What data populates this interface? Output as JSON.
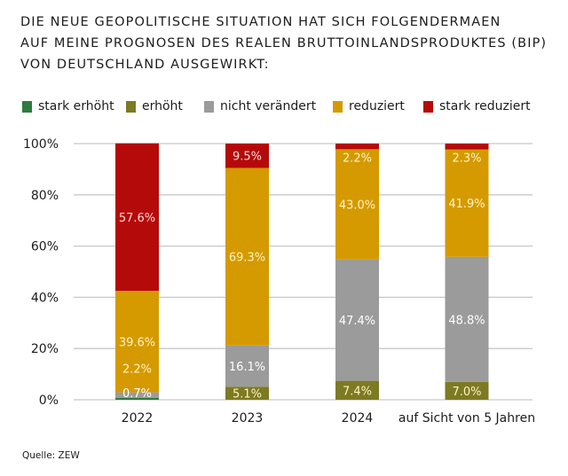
{
  "chart_data": {
    "type": "bar",
    "stacked": true,
    "title_lines": [
      "DIE NEUE GEOPOLITISCHE SITUATION HAT SICH FOLGENDERMAEN",
      "AUF MEINE PROGNOSEN DES REALEN BRUTTOINLANDSPRODUKTES (BIP)",
      "VON DEUTSCHLAND AUSGEWIRKT:"
    ],
    "xlabel": "",
    "ylabel": "",
    "ylim": [
      0,
      100
    ],
    "yticks": [
      "0%",
      "20%",
      "40%",
      "60%",
      "80%",
      "100%"
    ],
    "ytick_values": [
      0,
      20,
      40,
      60,
      80,
      100
    ],
    "grid": true,
    "legend_position": "top-left",
    "categories": [
      "2022",
      "2023",
      "2024",
      "auf Sicht von 5 Jahren"
    ],
    "series": [
      {
        "name": "stark erhöht",
        "color": "#2e7a3f",
        "values": [
          0.7,
          0,
          0,
          0
        ]
      },
      {
        "name": "erhöht",
        "color": "#7c7a22",
        "values": [
          0,
          5.1,
          7.4,
          7.0
        ]
      },
      {
        "name": "nicht verändert",
        "color": "#9b9b9b",
        "values": [
          2.2,
          16.1,
          47.4,
          48.8
        ]
      },
      {
        "name": "reduziert",
        "color": "#d49a00",
        "values": [
          39.6,
          69.3,
          43.0,
          41.9
        ]
      },
      {
        "name": "stark reduziert",
        "color": "#b50a0a",
        "values": [
          57.6,
          9.5,
          2.2,
          2.3
        ]
      }
    ],
    "data_labels": [
      [
        "0.7%",
        "",
        "2.2%",
        "39.6%",
        "57.6%"
      ],
      [
        "",
        "5.1%",
        "16.1%",
        "69.3%",
        "9.5%"
      ],
      [
        "",
        "7.4%",
        "47.4%",
        "43.0%",
        "2.2%"
      ],
      [
        "",
        "7.0%",
        "48.8%",
        "41.9%",
        "2.3%"
      ]
    ]
  },
  "source": "Quelle: ZEW"
}
